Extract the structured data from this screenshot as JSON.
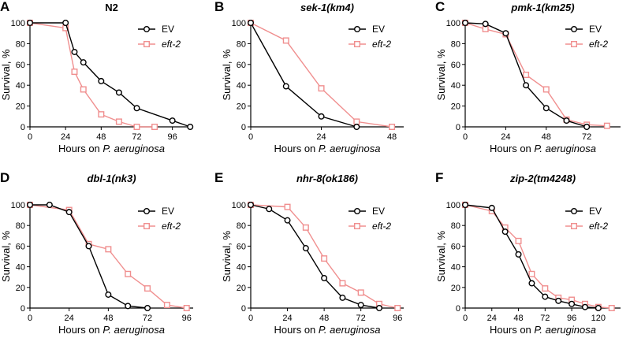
{
  "figure": {
    "series_colors": {
      "EV": "#000000",
      "eft-2": "#f08f8f"
    }
  },
  "chart_data": [
    {
      "type": "line",
      "panel": "A",
      "title": "N2",
      "title_italic": false,
      "xlabel_prefix": "Hours on ",
      "xlabel_italic": "P. aeruginosa",
      "ylabel": "Survival, %",
      "xlim": [
        0,
        110
      ],
      "ylim": [
        0,
        100
      ],
      "xticks": [
        0,
        24,
        48,
        72,
        96
      ],
      "yticks": [
        0,
        20,
        40,
        60,
        80,
        100
      ],
      "series": [
        {
          "name": "EV",
          "x": [
            0,
            24,
            30,
            36,
            48,
            60,
            72,
            96,
            108
          ],
          "values": [
            100,
            100,
            72,
            62,
            44,
            33,
            18,
            6,
            0
          ]
        },
        {
          "name": "eft-2",
          "x": [
            0,
            24,
            30,
            36,
            48,
            60,
            72,
            84
          ],
          "values": [
            100,
            95,
            53,
            36,
            12,
            5,
            0,
            0
          ]
        }
      ]
    },
    {
      "type": "line",
      "panel": "B",
      "title": "sek-1(km4)",
      "title_italic": true,
      "xlabel_prefix": "Hours on ",
      "xlabel_italic": "P. aeruginosa",
      "ylabel": "Survival, %",
      "xlim": [
        0,
        52
      ],
      "ylim": [
        0,
        100
      ],
      "xticks": [
        0,
        24,
        48
      ],
      "yticks": [
        0,
        20,
        40,
        60,
        80,
        100
      ],
      "series": [
        {
          "name": "EV",
          "x": [
            0,
            12,
            24,
            36
          ],
          "values": [
            100,
            39,
            10,
            0
          ]
        },
        {
          "name": "eft-2",
          "x": [
            0,
            12,
            24,
            36,
            48
          ],
          "values": [
            100,
            83,
            37,
            5,
            0
          ]
        }
      ]
    },
    {
      "type": "line",
      "panel": "C",
      "title": "pmk-1(km25)",
      "title_italic": true,
      "xlabel_prefix": "Hours on ",
      "xlabel_italic": "P. aeruginosa",
      "ylabel": "Survival, %",
      "xlim": [
        0,
        92
      ],
      "ylim": [
        0,
        100
      ],
      "xticks": [
        0,
        24,
        48,
        72
      ],
      "yticks": [
        0,
        20,
        40,
        60,
        80,
        100
      ],
      "series": [
        {
          "name": "EV",
          "x": [
            0,
            12,
            24,
            36,
            48,
            60,
            72
          ],
          "values": [
            100,
            99,
            90,
            40,
            18,
            6,
            0
          ]
        },
        {
          "name": "eft-2",
          "x": [
            0,
            12,
            24,
            36,
            48,
            60,
            72,
            84
          ],
          "values": [
            100,
            94,
            89,
            50,
            36,
            7,
            2,
            1
          ]
        }
      ]
    },
    {
      "type": "line",
      "panel": "D",
      "title": "dbl-1(nk3)",
      "title_italic": true,
      "xlabel_prefix": "Hours on ",
      "xlabel_italic": "P. aeruginosa",
      "ylabel": "Survival, %",
      "xlim": [
        0,
        100
      ],
      "ylim": [
        0,
        100
      ],
      "xticks": [
        0,
        24,
        48,
        72,
        96
      ],
      "yticks": [
        0,
        20,
        40,
        60,
        80,
        100
      ],
      "series": [
        {
          "name": "EV",
          "x": [
            0,
            12,
            24,
            36,
            48,
            60,
            72
          ],
          "values": [
            100,
            100,
            93,
            60,
            13,
            2,
            0
          ]
        },
        {
          "name": "eft-2",
          "x": [
            0,
            24,
            36,
            48,
            60,
            72,
            84,
            96
          ],
          "values": [
            100,
            95,
            62,
            57,
            33,
            19,
            3,
            0
          ]
        }
      ]
    },
    {
      "type": "line",
      "panel": "E",
      "title": "nhr-8(ok186)",
      "title_italic": true,
      "xlabel_prefix": "Hours on ",
      "xlabel_italic": "P. aeruginosa",
      "ylabel": "Survival, %",
      "xlim": [
        0,
        100
      ],
      "ylim": [
        0,
        100
      ],
      "xticks": [
        0,
        24,
        48,
        72,
        96
      ],
      "yticks": [
        0,
        20,
        40,
        60,
        80,
        100
      ],
      "series": [
        {
          "name": "EV",
          "x": [
            0,
            12,
            24,
            36,
            48,
            60,
            72,
            84
          ],
          "values": [
            100,
            96,
            85,
            58,
            29,
            10,
            3,
            0
          ]
        },
        {
          "name": "eft-2",
          "x": [
            0,
            24,
            36,
            48,
            60,
            72,
            84,
            96
          ],
          "values": [
            100,
            98,
            78,
            48,
            24,
            15,
            4,
            0
          ]
        }
      ]
    },
    {
      "type": "line",
      "panel": "F",
      "title": "zip-2(tm4248)",
      "title_italic": true,
      "xlabel_prefix": "Hours on ",
      "xlabel_italic": "P. aeruginosa",
      "ylabel": "Survival, %",
      "xlim": [
        0,
        140
      ],
      "ylim": [
        0,
        100
      ],
      "xticks": [
        0,
        24,
        48,
        72,
        96,
        120
      ],
      "yticks": [
        0,
        20,
        40,
        60,
        80,
        100
      ],
      "series": [
        {
          "name": "EV",
          "x": [
            0,
            24,
            36,
            48,
            60,
            72,
            84,
            96,
            108,
            120
          ],
          "values": [
            100,
            97,
            74,
            52,
            24,
            11,
            7,
            4,
            1,
            0
          ]
        },
        {
          "name": "eft-2",
          "x": [
            0,
            24,
            36,
            48,
            60,
            72,
            84,
            96,
            108,
            120,
            132
          ],
          "values": [
            100,
            94,
            78,
            65,
            33,
            19,
            10,
            8,
            4,
            1,
            0
          ]
        }
      ]
    }
  ]
}
